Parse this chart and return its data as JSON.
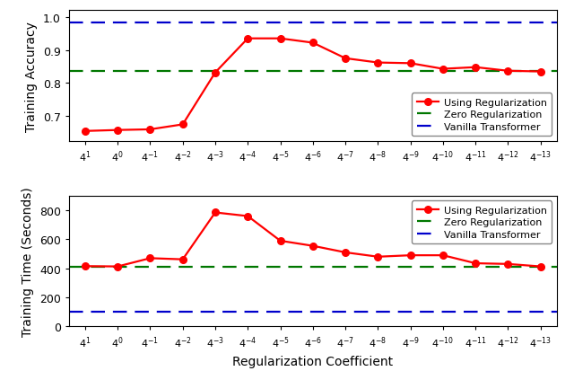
{
  "x_ticks_latex": [
    "$4^{1}$",
    "$4^{0}$",
    "$4^{-1}$",
    "$4^{-2}$",
    "$4^{-3}$",
    "$4^{-4}$",
    "$4^{-5}$",
    "$4^{-6}$",
    "$4^{-7}$",
    "$4^{-8}$",
    "$4^{-9}$",
    "$4^{-10}$",
    "$4^{-11}$",
    "$4^{-12}$",
    "$4^{-13}$"
  ],
  "acc_red": [
    0.655,
    0.658,
    0.66,
    0.675,
    0.832,
    0.935,
    0.935,
    0.922,
    0.875,
    0.862,
    0.86,
    0.843,
    0.848,
    0.837,
    0.835
  ],
  "acc_green": 0.836,
  "acc_blue": 0.983,
  "time_red": [
    415,
    413,
    470,
    462,
    785,
    760,
    590,
    555,
    510,
    480,
    490,
    490,
    435,
    430,
    413
  ],
  "time_green": 408,
  "time_blue": 100,
  "acc_ylim": [
    0.625,
    1.02
  ],
  "time_ylim": [
    0,
    900
  ],
  "acc_yticks": [
    0.7,
    0.8,
    0.9,
    1.0
  ],
  "time_yticks": [
    0,
    200,
    400,
    600,
    800
  ],
  "xlabel": "Regularization Coefficient",
  "acc_ylabel": "Training Accuracy",
  "time_ylabel": "Training Time (Seconds)",
  "legend_labels": [
    "Using Regularization",
    "Zero Regularization",
    "Vanilla Transformer"
  ],
  "red_color": "#FF0000",
  "green_color": "#007700",
  "blue_color": "#0000CC",
  "bg_color": "#FFFFFF",
  "linewidth": 1.6,
  "markersize": 5.5
}
